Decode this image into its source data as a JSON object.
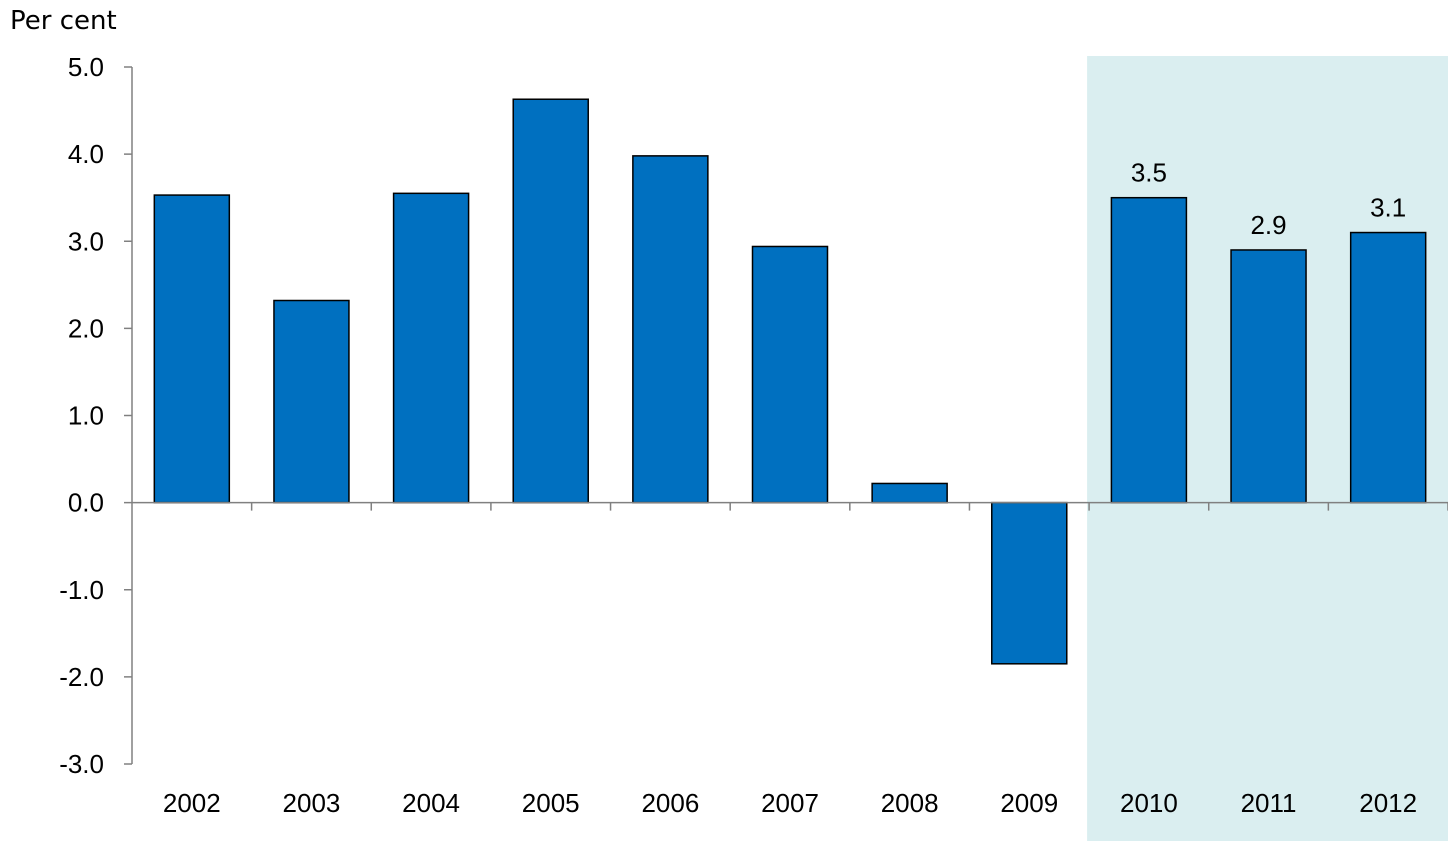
{
  "chart_data": {
    "type": "bar",
    "ylabel": "Per cent",
    "categories": [
      "2002",
      "2003",
      "2004",
      "2005",
      "2006",
      "2007",
      "2008",
      "2009",
      "2010",
      "2011",
      "2012"
    ],
    "values": [
      3.53,
      2.32,
      3.55,
      4.63,
      3.98,
      2.94,
      0.22,
      -1.85,
      3.5,
      2.9,
      3.1
    ],
    "data_labels": [
      "",
      "",
      "",
      "",
      "",
      "",
      "",
      "",
      "3.5",
      "2.9",
      "3.1"
    ],
    "ylim": [
      -3.0,
      5.0
    ],
    "yticks": [
      "-3.0",
      "-2.0",
      "-1.0",
      "0.0",
      "1.0",
      "2.0",
      "3.0",
      "4.0",
      "5.0"
    ],
    "grid": false,
    "forecast_shaded_categories": [
      "2010",
      "2011",
      "2012"
    ],
    "colors": {
      "bar": "#0070C0",
      "bar_edge": "#000000",
      "forecast_shade": "#DAEEF0"
    }
  }
}
